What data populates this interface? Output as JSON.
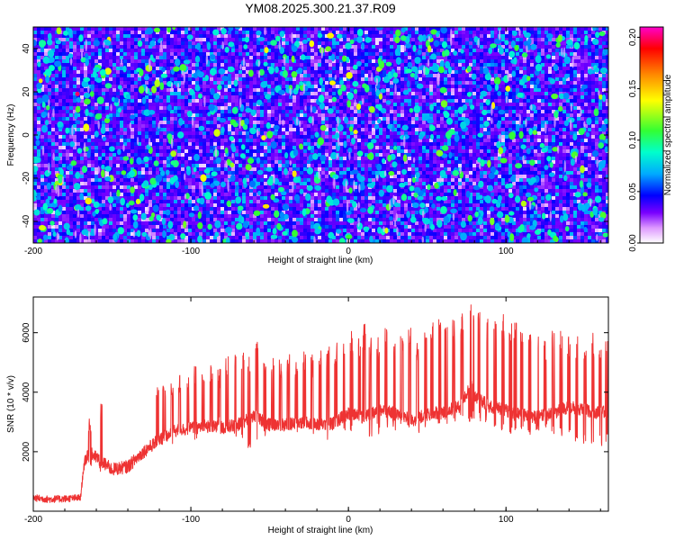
{
  "title": "YM08.2025.300.21.37.R09",
  "chart_data": [
    {
      "type": "heatmap",
      "title": "YM08.2025.300.21.37.R09",
      "xlabel": "Height of straight line (km)",
      "ylabel": "Frequency (Hz)",
      "xlim": [
        -200,
        165
      ],
      "ylim": [
        -50,
        50
      ],
      "xticks": [
        -200,
        -100,
        0,
        100
      ],
      "xtick_labels": [
        "-200",
        "-100",
        "0",
        "100"
      ],
      "yticks": [
        -40,
        -20,
        0,
        20,
        40
      ],
      "ytick_labels": [
        "-40",
        "-20",
        "0",
        "20",
        "40"
      ],
      "colorbar": {
        "label": "Normalized spectral amplitude",
        "range": [
          0,
          0.21
        ],
        "ticks": [
          0,
          0.05,
          0.1,
          0.15,
          0.2
        ],
        "tick_labels": [
          "0.00",
          "0.05",
          "0.10",
          "0.15",
          "0.20"
        ],
        "colors": [
          "#ffffff",
          "#dd99ff",
          "#7a00ff",
          "#0000ff",
          "#00aaff",
          "#00ffcc",
          "#33ff33",
          "#ffff00",
          "#ff8800",
          "#ff0000",
          "#ff00cc"
        ]
      },
      "typical_amplitude": 0.04,
      "peak_amplitude": 0.2,
      "peak_location": {
        "x": -172,
        "y": 19
      }
    },
    {
      "type": "line",
      "title": "",
      "xlabel": "Height of straight line (km)",
      "ylabel": "SNR (10 * v/v)",
      "xlim": [
        -200,
        165
      ],
      "ylim": [
        0,
        7200
      ],
      "xticks": [
        -200,
        -100,
        0,
        100
      ],
      "xtick_labels": [
        "-200",
        "-100",
        "0",
        "100"
      ],
      "yticks": [
        2000,
        4000,
        6000
      ],
      "ytick_labels": [
        "2000",
        "4000",
        "6000"
      ],
      "series": [
        {
          "name": "SNR",
          "color": "#ee3333",
          "x": [
            -200,
            -190,
            -180,
            -170,
            -168,
            -165,
            -160,
            -150,
            -140,
            -130,
            -120,
            -110,
            -100,
            -90,
            -80,
            -70,
            -60,
            -50,
            -40,
            -30,
            -20,
            -10,
            0,
            10,
            20,
            30,
            40,
            50,
            60,
            70,
            78,
            80,
            90,
            100,
            110,
            120,
            130,
            140,
            150,
            160,
            165
          ],
          "values": [
            450,
            400,
            420,
            450,
            1500,
            2000,
            1800,
            1400,
            1500,
            2000,
            2400,
            2700,
            2800,
            2850,
            2800,
            2900,
            3200,
            2900,
            2900,
            3000,
            2900,
            2950,
            3300,
            3150,
            3400,
            3300,
            3050,
            3250,
            3350,
            3500,
            4200,
            3900,
            3500,
            3400,
            3250,
            3150,
            3300,
            3500,
            3400,
            3300,
            3350
          ]
        }
      ],
      "spikes": {
        "x": [
          -164,
          -157,
          -121,
          -117,
          -112,
          -107,
          -102,
          -97,
          -92,
          -87,
          -82,
          -77,
          -72,
          -67,
          -63,
          -58,
          -53,
          -48,
          -43,
          -38,
          -33,
          -28,
          -23,
          -18,
          -13,
          -8,
          -3,
          2,
          7,
          10,
          14,
          19,
          24,
          29,
          34,
          39,
          44,
          49,
          53,
          58,
          62,
          67,
          72,
          77,
          79,
          83,
          88,
          93,
          98,
          103,
          106,
          110,
          115,
          120,
          125,
          130,
          135,
          140,
          145,
          150,
          155,
          160,
          164
        ],
        "peaks": [
          3100,
          3600,
          4200,
          4500,
          4300,
          4600,
          4500,
          4900,
          4800,
          5000,
          4800,
          5200,
          5500,
          5600,
          5500,
          5700,
          5000,
          5200,
          5100,
          5300,
          5100,
          5400,
          5300,
          5500,
          5600,
          5800,
          5800,
          6100,
          6000,
          6300,
          5900,
          6000,
          6200,
          6000,
          6100,
          6300,
          5900,
          6300,
          6400,
          6500,
          6600,
          6600,
          6800,
          7100,
          7200,
          6900,
          6600,
          6600,
          6700,
          6300,
          6500,
          6200,
          6100,
          6100,
          5800,
          6100,
          6100,
          5900,
          6000,
          5800,
          6000,
          5600,
          5800
        ],
        "dips": [
          1400,
          1300,
          2100,
          2400,
          2200,
          2600,
          2500,
          2400,
          2700,
          2600,
          2800,
          2600,
          2500,
          2300,
          2100,
          2400,
          2500,
          2600,
          2700,
          2600,
          2600,
          2700,
          2500,
          2700,
          2400,
          2800,
          2700,
          2600,
          2900,
          2700,
          2500,
          2600,
          2800,
          2700,
          2900,
          2800,
          2600,
          2800,
          2900,
          2700,
          2800,
          3000,
          2900,
          3000,
          3100,
          3000,
          2900,
          2800,
          2700,
          2600,
          2700,
          2600,
          2500,
          2600,
          2700,
          2600,
          2500,
          2400,
          2300,
          2200,
          2100,
          2200,
          2300
        ]
      }
    }
  ]
}
